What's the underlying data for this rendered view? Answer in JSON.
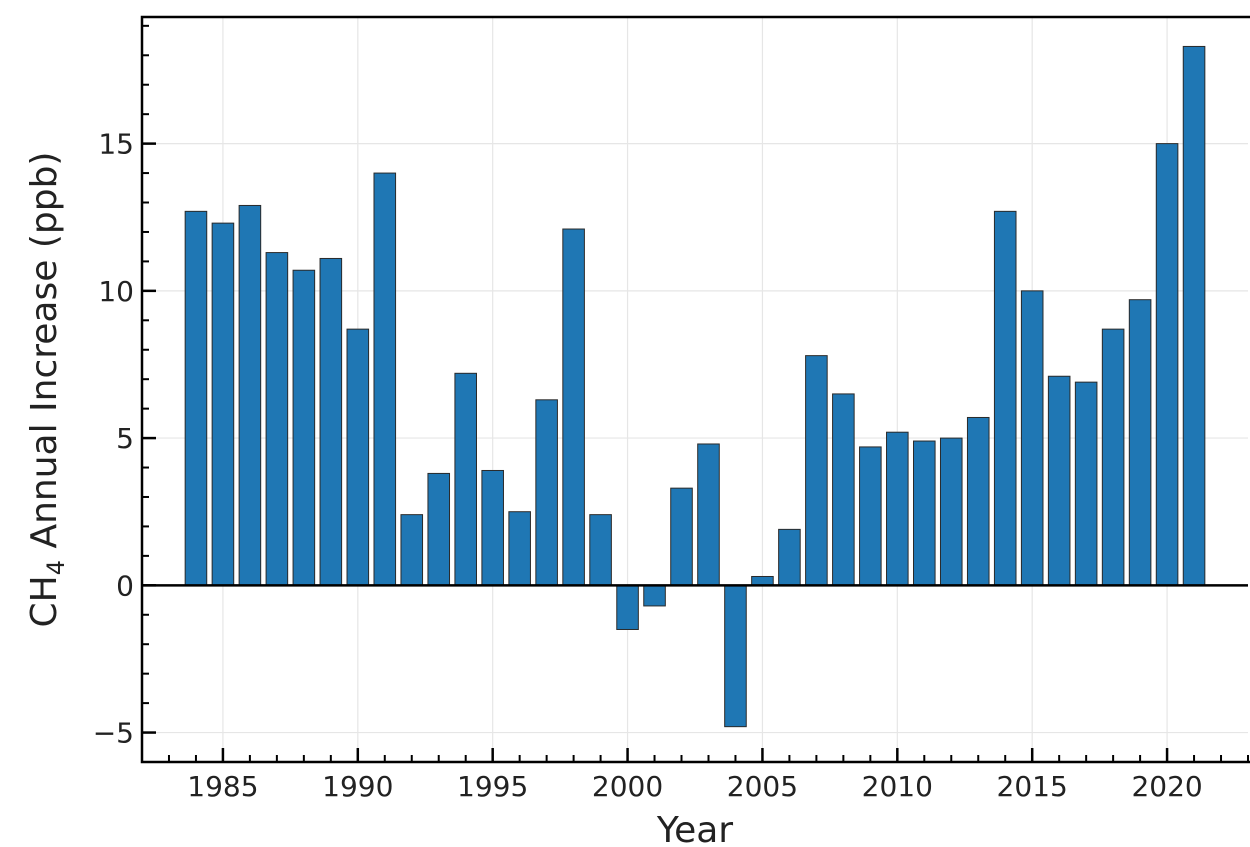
{
  "chart_data": {
    "type": "bar",
    "title": "",
    "xlabel": "Year",
    "ylabel": {
      "prefix": "CH",
      "subscript": "4",
      "suffix": " Annual Increase (ppb)"
    },
    "x": [
      1984,
      1985,
      1986,
      1987,
      1988,
      1989,
      1990,
      1991,
      1992,
      1993,
      1994,
      1995,
      1996,
      1997,
      1998,
      1999,
      2000,
      2001,
      2002,
      2003,
      2004,
      2005,
      2006,
      2007,
      2008,
      2009,
      2010,
      2011,
      2012,
      2013,
      2014,
      2015,
      2016,
      2017,
      2018,
      2019,
      2020,
      2021
    ],
    "values": [
      12.7,
      12.3,
      12.9,
      11.3,
      10.7,
      11.1,
      8.7,
      14.0,
      2.4,
      3.8,
      7.2,
      3.9,
      2.5,
      6.3,
      12.1,
      2.4,
      -1.5,
      -0.7,
      3.3,
      4.8,
      -4.8,
      0.3,
      1.9,
      7.8,
      6.5,
      4.7,
      5.2,
      4.9,
      5.0,
      5.7,
      12.7,
      10.0,
      7.1,
      6.9,
      8.7,
      9.7,
      15.0,
      18.3
    ],
    "xticks": [
      1985,
      1990,
      1995,
      2000,
      2005,
      2010,
      2015,
      2020
    ],
    "yticks": [
      -5,
      0,
      5,
      10,
      15
    ],
    "xlim": [
      1982,
      2023
    ],
    "ylim": [
      -6,
      19.3
    ],
    "grid": true,
    "legend": "none",
    "bar_color": "#1f77b4"
  }
}
